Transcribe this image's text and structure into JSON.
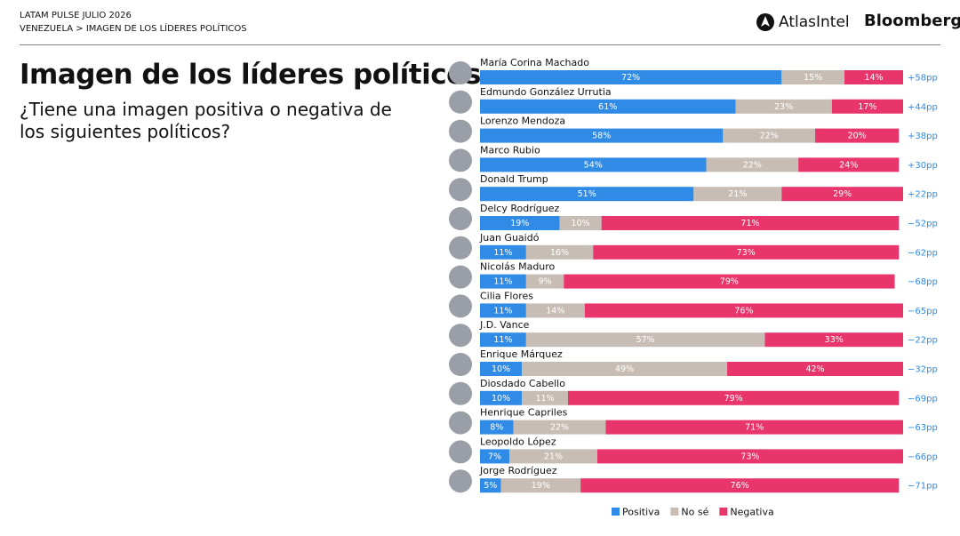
{
  "chart_data": {
    "type": "stacked-bar-horizontal",
    "kicker": "LATAM PULSE JULIO 2026",
    "breadcrumb": "VENEZUELA > IMAGEN DE LOS LÍDERES POLÍTICOS",
    "brand": "AtlasIntel",
    "publisher": "Bloomberg",
    "title": "Imagen de los líderes políticos",
    "subtitle": "¿Tiene una imagen positiva o negativa de los siguientes políticos?",
    "categories": [
      "María Corina Machado",
      "Edmundo González Urrutia",
      "Lorenzo Mendoza",
      "Marco Rubio",
      "Donald Trump",
      "Delcy Rodríguez",
      "Juan Guaidó",
      "Nicolás Maduro",
      "Cilia Flores",
      "J.D. Vance",
      "Enrique Márquez",
      "Diosdado Cabello",
      "Henrique Capriles",
      "Leopoldo López",
      "Jorge Rodríguez"
    ],
    "series": [
      {
        "name": "Positiva",
        "color": "#2f8be6",
        "values": [
          72,
          61,
          58,
          54,
          51,
          19,
          11,
          11,
          11,
          11,
          10,
          10,
          8,
          7,
          5
        ],
        "value_labels": [
          "72%",
          "61%",
          "58%",
          "54%",
          "51%",
          "19%",
          "11%",
          "11%",
          "11%",
          "11%",
          "10%",
          "10%",
          "8%",
          "7%",
          "5%"
        ]
      },
      {
        "name": "No sé",
        "color": "#c8bdb5",
        "values": [
          15,
          23,
          22,
          22,
          21,
          10,
          16,
          9,
          14,
          57,
          49,
          11,
          22,
          21,
          19
        ],
        "value_labels": [
          "15%",
          "23%",
          "22%",
          "22%",
          "21%",
          "10%",
          "16%",
          "9%",
          "14%",
          "57%",
          "49%",
          "11%",
          "22%",
          "21%",
          "19%"
        ]
      },
      {
        "name": "Negativa",
        "color": "#e8356b",
        "values": [
          14,
          17,
          20,
          24,
          29,
          71,
          73,
          79,
          76,
          33,
          42,
          79,
          71,
          73,
          76
        ],
        "value_labels": [
          "14%",
          "17%",
          "20%",
          "24%",
          "29%",
          "71%",
          "73%",
          "79%",
          "76%",
          "33%",
          "42%",
          "79%",
          "71%",
          "73%",
          "76%"
        ]
      }
    ],
    "net_labels": [
      "+58pp",
      "+44pp",
      "+38pp",
      "+30pp",
      "+22pp",
      "−52pp",
      "−62pp",
      "−68pp",
      "−65pp",
      "−22pp",
      "−32pp",
      "−69pp",
      "−63pp",
      "−66pp",
      "−71pp"
    ],
    "net_color": "#2f8be6"
  }
}
